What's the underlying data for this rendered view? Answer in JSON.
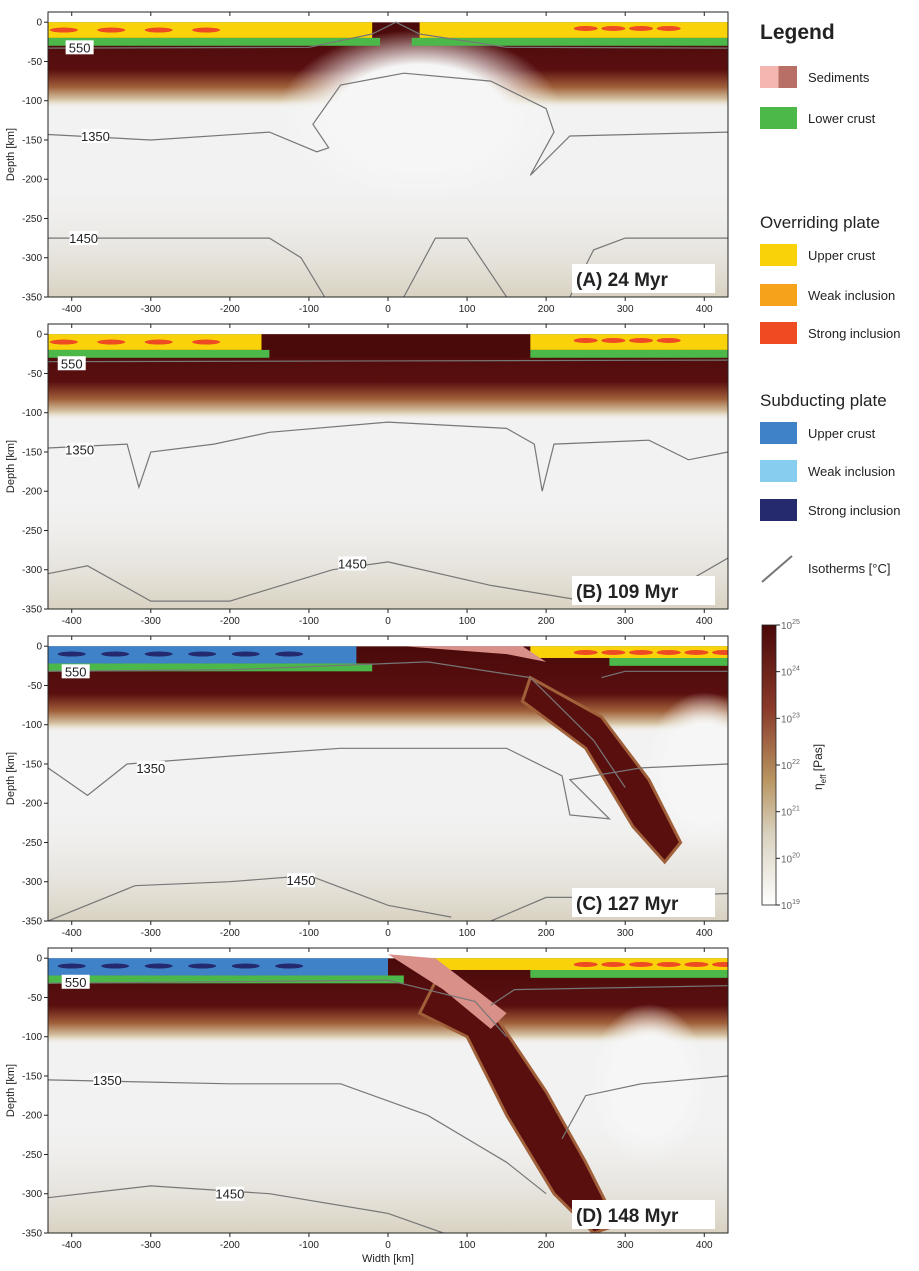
{
  "panels": [
    {
      "label": "(A) 24 Myr",
      "isotherms": [
        550,
        1350,
        1450
      ]
    },
    {
      "label": "(B) 109 Myr",
      "isotherms": [
        550,
        1350,
        1450
      ]
    },
    {
      "label": "(C) 127 Myr",
      "isotherms": [
        550,
        1350,
        1450
      ]
    },
    {
      "label": "(D) 148 Myr",
      "isotherms": [
        550,
        1350,
        1450
      ]
    }
  ],
  "x_axis": {
    "label": "Width [km]",
    "xlim": [
      -430,
      430
    ],
    "xticks": [
      -400,
      -300,
      -200,
      -100,
      0,
      100,
      200,
      300,
      400
    ]
  },
  "y_axis": {
    "label": "Depth [km]",
    "ylim": [
      -350,
      13
    ],
    "yticks": [
      0,
      -50,
      -100,
      -150,
      -200,
      -250,
      -300,
      -350
    ]
  },
  "legend": {
    "title": "Legend",
    "general": [
      {
        "label": "Sediments",
        "colors": [
          "#f4b6b0",
          "#b86f66"
        ]
      },
      {
        "label": "Lower crust",
        "colors": [
          "#4cb84a"
        ]
      }
    ],
    "groups": [
      {
        "title": "Overriding plate",
        "items": [
          {
            "label": "Upper crust",
            "colors": [
              "#f9d20a"
            ]
          },
          {
            "label": "Weak inclusion",
            "colors": [
              "#f7a21b"
            ]
          },
          {
            "label": "Strong inclusion",
            "colors": [
              "#ef4b23"
            ]
          }
        ]
      },
      {
        "title": "Subducting plate",
        "items": [
          {
            "label": "Upper crust",
            "colors": [
              "#3f82c8"
            ]
          },
          {
            "label": "Weak inclusion",
            "colors": [
              "#86cdf0"
            ]
          },
          {
            "label": "Strong inclusion",
            "colors": [
              "#25296e"
            ]
          }
        ]
      }
    ],
    "isotherm_label": "Isotherms [°C]"
  },
  "colorbar": {
    "symbol": "η",
    "subscript": "eff",
    "unit": "[Pas]",
    "base": "10",
    "exponents": [
      25,
      24,
      23,
      22,
      21,
      20,
      19
    ]
  }
}
